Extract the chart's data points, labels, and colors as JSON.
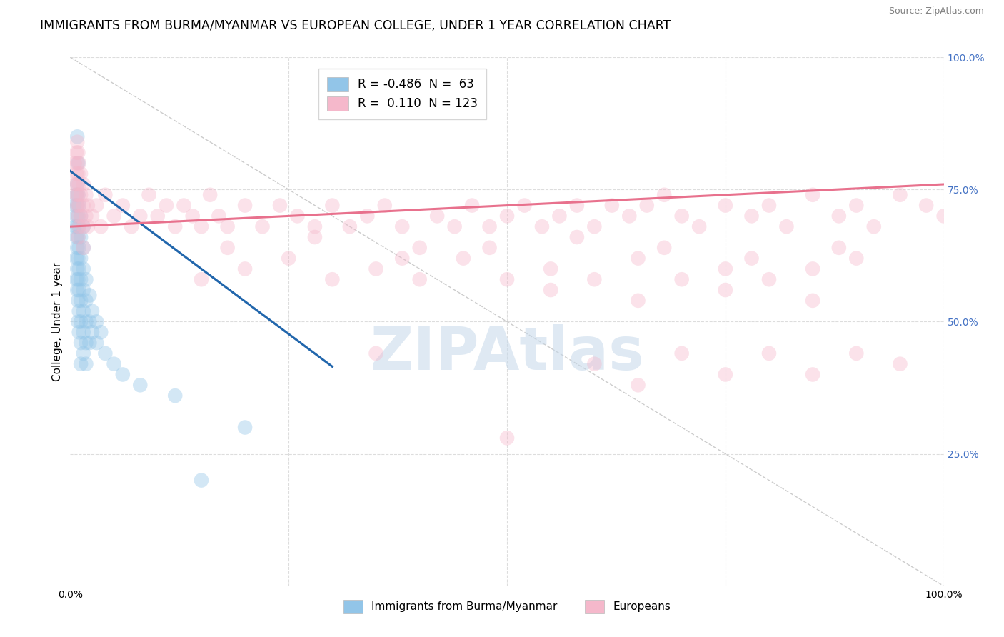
{
  "title": "IMMIGRANTS FROM BURMA/MYANMAR VS EUROPEAN COLLEGE, UNDER 1 YEAR CORRELATION CHART",
  "source": "Source: ZipAtlas.com",
  "ylabel": "College, Under 1 year",
  "xlim": [
    0.0,
    1.0
  ],
  "ylim": [
    0.0,
    1.0
  ],
  "blue_color": "#92c5e8",
  "pink_color": "#f5b8cb",
  "blue_line_color": "#2166ac",
  "pink_line_color": "#e8718d",
  "ref_line_color": "#cccccc",
  "grid_color": "#dddddd",
  "watermark": "ZIPAtlas",
  "watermark_color": "#c5d8ea",
  "right_tick_color": "#4472c4",
  "blue_legend_color": "#92c5e8",
  "pink_legend_color": "#f5b8cb",
  "legend_R_blue": "-0.486",
  "legend_N_blue": "63",
  "legend_R_pink": "0.110",
  "legend_N_pink": "123",
  "scatter_blue": [
    [
      0.005,
      0.72
    ],
    [
      0.005,
      0.68
    ],
    [
      0.007,
      0.74
    ],
    [
      0.007,
      0.7
    ],
    [
      0.007,
      0.66
    ],
    [
      0.007,
      0.62
    ],
    [
      0.007,
      0.58
    ],
    [
      0.008,
      0.76
    ],
    [
      0.008,
      0.72
    ],
    [
      0.008,
      0.68
    ],
    [
      0.008,
      0.64
    ],
    [
      0.008,
      0.6
    ],
    [
      0.008,
      0.56
    ],
    [
      0.009,
      0.74
    ],
    [
      0.009,
      0.7
    ],
    [
      0.009,
      0.66
    ],
    [
      0.009,
      0.62
    ],
    [
      0.009,
      0.58
    ],
    [
      0.009,
      0.54
    ],
    [
      0.009,
      0.5
    ],
    [
      0.01,
      0.72
    ],
    [
      0.01,
      0.68
    ],
    [
      0.01,
      0.64
    ],
    [
      0.01,
      0.6
    ],
    [
      0.01,
      0.56
    ],
    [
      0.01,
      0.52
    ],
    [
      0.01,
      0.48
    ],
    [
      0.012,
      0.7
    ],
    [
      0.012,
      0.66
    ],
    [
      0.012,
      0.62
    ],
    [
      0.012,
      0.58
    ],
    [
      0.012,
      0.54
    ],
    [
      0.012,
      0.5
    ],
    [
      0.012,
      0.46
    ],
    [
      0.012,
      0.42
    ],
    [
      0.015,
      0.68
    ],
    [
      0.015,
      0.64
    ],
    [
      0.015,
      0.6
    ],
    [
      0.015,
      0.56
    ],
    [
      0.015,
      0.52
    ],
    [
      0.015,
      0.48
    ],
    [
      0.015,
      0.44
    ],
    [
      0.018,
      0.58
    ],
    [
      0.018,
      0.54
    ],
    [
      0.018,
      0.5
    ],
    [
      0.018,
      0.46
    ],
    [
      0.018,
      0.42
    ],
    [
      0.022,
      0.55
    ],
    [
      0.022,
      0.5
    ],
    [
      0.022,
      0.46
    ],
    [
      0.025,
      0.52
    ],
    [
      0.025,
      0.48
    ],
    [
      0.03,
      0.5
    ],
    [
      0.03,
      0.46
    ],
    [
      0.035,
      0.48
    ],
    [
      0.04,
      0.44
    ],
    [
      0.05,
      0.42
    ],
    [
      0.06,
      0.4
    ],
    [
      0.08,
      0.38
    ],
    [
      0.12,
      0.36
    ],
    [
      0.15,
      0.2
    ],
    [
      0.2,
      0.3
    ],
    [
      0.008,
      0.85
    ],
    [
      0.009,
      0.8
    ]
  ],
  "scatter_pink": [
    [
      0.005,
      0.8
    ],
    [
      0.005,
      0.76
    ],
    [
      0.007,
      0.82
    ],
    [
      0.007,
      0.78
    ],
    [
      0.007,
      0.74
    ],
    [
      0.008,
      0.84
    ],
    [
      0.008,
      0.8
    ],
    [
      0.008,
      0.76
    ],
    [
      0.008,
      0.72
    ],
    [
      0.009,
      0.82
    ],
    [
      0.009,
      0.78
    ],
    [
      0.009,
      0.74
    ],
    [
      0.009,
      0.7
    ],
    [
      0.009,
      0.66
    ],
    [
      0.01,
      0.8
    ],
    [
      0.01,
      0.76
    ],
    [
      0.01,
      0.72
    ],
    [
      0.01,
      0.68
    ],
    [
      0.012,
      0.78
    ],
    [
      0.012,
      0.74
    ],
    [
      0.012,
      0.7
    ],
    [
      0.015,
      0.76
    ],
    [
      0.015,
      0.72
    ],
    [
      0.015,
      0.68
    ],
    [
      0.015,
      0.64
    ],
    [
      0.018,
      0.74
    ],
    [
      0.018,
      0.7
    ],
    [
      0.02,
      0.72
    ],
    [
      0.02,
      0.68
    ],
    [
      0.025,
      0.7
    ],
    [
      0.03,
      0.72
    ],
    [
      0.035,
      0.68
    ],
    [
      0.04,
      0.74
    ],
    [
      0.05,
      0.7
    ],
    [
      0.06,
      0.72
    ],
    [
      0.07,
      0.68
    ],
    [
      0.08,
      0.7
    ],
    [
      0.09,
      0.74
    ],
    [
      0.1,
      0.7
    ],
    [
      0.11,
      0.72
    ],
    [
      0.12,
      0.68
    ],
    [
      0.13,
      0.72
    ],
    [
      0.14,
      0.7
    ],
    [
      0.15,
      0.68
    ],
    [
      0.16,
      0.74
    ],
    [
      0.17,
      0.7
    ],
    [
      0.18,
      0.68
    ],
    [
      0.2,
      0.72
    ],
    [
      0.22,
      0.68
    ],
    [
      0.24,
      0.72
    ],
    [
      0.26,
      0.7
    ],
    [
      0.28,
      0.68
    ],
    [
      0.3,
      0.72
    ],
    [
      0.32,
      0.68
    ],
    [
      0.34,
      0.7
    ],
    [
      0.36,
      0.72
    ],
    [
      0.38,
      0.68
    ],
    [
      0.4,
      0.64
    ],
    [
      0.42,
      0.7
    ],
    [
      0.44,
      0.68
    ],
    [
      0.46,
      0.72
    ],
    [
      0.48,
      0.68
    ],
    [
      0.5,
      0.7
    ],
    [
      0.52,
      0.72
    ],
    [
      0.54,
      0.68
    ],
    [
      0.56,
      0.7
    ],
    [
      0.58,
      0.72
    ],
    [
      0.6,
      0.68
    ],
    [
      0.62,
      0.72
    ],
    [
      0.64,
      0.7
    ],
    [
      0.66,
      0.72
    ],
    [
      0.68,
      0.74
    ],
    [
      0.7,
      0.7
    ],
    [
      0.72,
      0.68
    ],
    [
      0.75,
      0.72
    ],
    [
      0.78,
      0.7
    ],
    [
      0.8,
      0.72
    ],
    [
      0.82,
      0.68
    ],
    [
      0.85,
      0.74
    ],
    [
      0.88,
      0.7
    ],
    [
      0.9,
      0.72
    ],
    [
      0.92,
      0.68
    ],
    [
      0.95,
      0.74
    ],
    [
      0.98,
      0.72
    ],
    [
      1.0,
      0.7
    ],
    [
      0.15,
      0.58
    ],
    [
      0.2,
      0.6
    ],
    [
      0.25,
      0.62
    ],
    [
      0.3,
      0.58
    ],
    [
      0.35,
      0.6
    ],
    [
      0.4,
      0.58
    ],
    [
      0.45,
      0.62
    ],
    [
      0.5,
      0.58
    ],
    [
      0.55,
      0.6
    ],
    [
      0.6,
      0.58
    ],
    [
      0.65,
      0.62
    ],
    [
      0.7,
      0.58
    ],
    [
      0.75,
      0.6
    ],
    [
      0.8,
      0.58
    ],
    [
      0.85,
      0.6
    ],
    [
      0.9,
      0.62
    ],
    [
      0.18,
      0.64
    ],
    [
      0.28,
      0.66
    ],
    [
      0.38,
      0.62
    ],
    [
      0.48,
      0.64
    ],
    [
      0.58,
      0.66
    ],
    [
      0.68,
      0.64
    ],
    [
      0.78,
      0.62
    ],
    [
      0.88,
      0.64
    ],
    [
      0.35,
      0.44
    ],
    [
      0.5,
      0.28
    ],
    [
      0.6,
      0.42
    ],
    [
      0.65,
      0.38
    ],
    [
      0.7,
      0.44
    ],
    [
      0.75,
      0.4
    ],
    [
      0.8,
      0.44
    ],
    [
      0.85,
      0.4
    ],
    [
      0.9,
      0.44
    ],
    [
      0.95,
      0.42
    ],
    [
      0.55,
      0.56
    ],
    [
      0.65,
      0.54
    ],
    [
      0.75,
      0.56
    ],
    [
      0.85,
      0.54
    ]
  ],
  "blue_line_x0": 0.0,
  "blue_line_y0": 0.785,
  "blue_line_x1": 0.3,
  "blue_line_y1": 0.415,
  "pink_line_x0": 0.0,
  "pink_line_y0": 0.68,
  "pink_line_x1": 1.0,
  "pink_line_y1": 0.76,
  "title_fontsize": 12.5,
  "source_fontsize": 9,
  "tick_fontsize": 10,
  "ylabel_fontsize": 11
}
